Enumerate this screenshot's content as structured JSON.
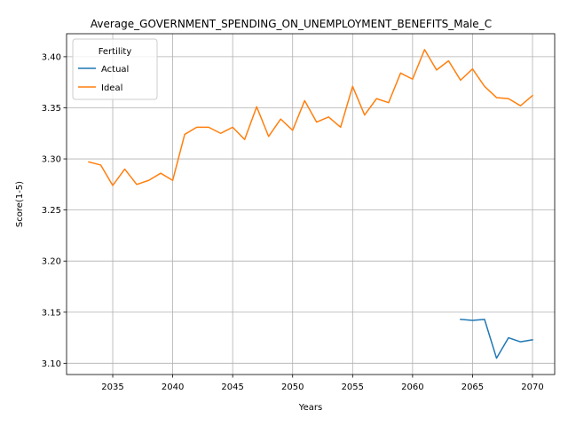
{
  "chart_data": {
    "type": "line",
    "title": "Average_GOVERNMENT_SPENDING_ON_UNEMPLOYMENT_BENEFITS_Male_C",
    "xlabel": "Years",
    "ylabel": "Score(1-5)",
    "xlim": [
      2031.15,
      2071.85
    ],
    "ylim": [
      3.089,
      3.4225
    ],
    "xticks": [
      2035,
      2040,
      2045,
      2050,
      2055,
      2060,
      2065,
      2070
    ],
    "yticks": [
      3.1,
      3.15,
      3.2,
      3.25,
      3.3,
      3.35,
      3.4
    ],
    "grid": true,
    "legend": {
      "title": "Fertility",
      "placement": "top-left"
    },
    "series": [
      {
        "name": "Actual",
        "color": "#1f77b4",
        "x": [
          2064,
          2065,
          2066,
          2067,
          2068,
          2069,
          2070
        ],
        "y": [
          3.143,
          3.142,
          3.143,
          3.105,
          3.125,
          3.121,
          3.123
        ]
      },
      {
        "name": "Ideal",
        "color": "#ff7f0e",
        "x": [
          2033,
          2034,
          2035,
          2036,
          2037,
          2038,
          2039,
          2040,
          2041,
          2042,
          2043,
          2044,
          2045,
          2046,
          2047,
          2048,
          2049,
          2050,
          2051,
          2052,
          2053,
          2054,
          2055,
          2056,
          2057,
          2058,
          2059,
          2060,
          2061,
          2062,
          2063,
          2064,
          2065,
          2066,
          2067,
          2068,
          2069,
          2070
        ],
        "y": [
          3.297,
          3.294,
          3.274,
          3.29,
          3.275,
          3.279,
          3.286,
          3.279,
          3.324,
          3.331,
          3.331,
          3.325,
          3.331,
          3.319,
          3.351,
          3.322,
          3.339,
          3.328,
          3.357,
          3.336,
          3.341,
          3.331,
          3.371,
          3.343,
          3.359,
          3.355,
          3.384,
          3.378,
          3.407,
          3.387,
          3.396,
          3.377,
          3.388,
          3.371,
          3.36,
          3.359,
          3.352,
          3.362
        ]
      }
    ]
  }
}
